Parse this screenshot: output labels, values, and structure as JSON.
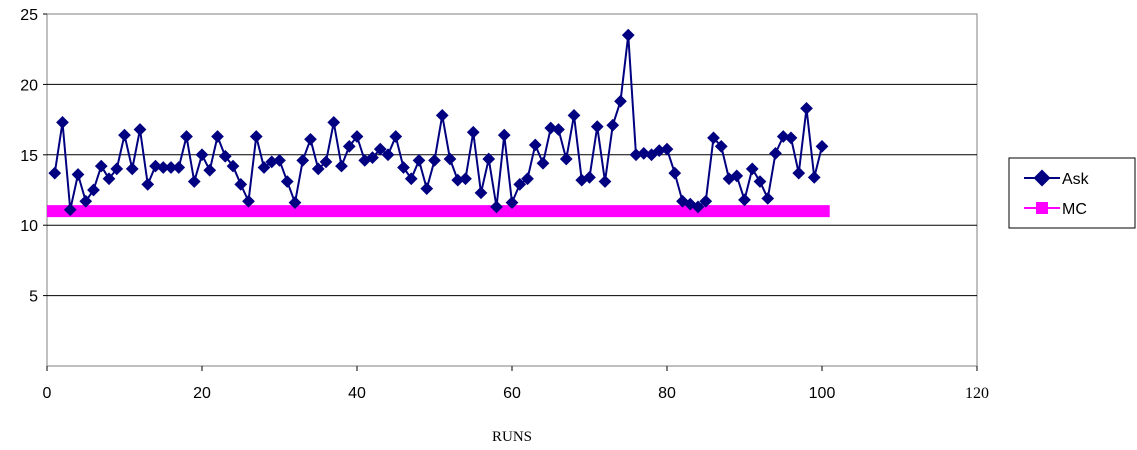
{
  "chart_data": {
    "type": "line",
    "xlabel": "RUNS",
    "ylabel": "",
    "xlim": [
      0,
      120
    ],
    "ylim": [
      0,
      25
    ],
    "x_ticks": [
      "0",
      "20",
      "40",
      "60",
      "80",
      "100",
      "120"
    ],
    "y_ticks": [
      "5",
      "10",
      "15",
      "20",
      "25"
    ],
    "grid": "horizontal",
    "legend_position": "right",
    "series": [
      {
        "name": "Ask",
        "color": "#000080",
        "marker": "diamond",
        "x": [
          1,
          2,
          3,
          4,
          5,
          6,
          7,
          8,
          9,
          10,
          11,
          12,
          13,
          14,
          15,
          16,
          17,
          18,
          19,
          20,
          21,
          22,
          23,
          24,
          25,
          26,
          27,
          28,
          29,
          30,
          31,
          32,
          33,
          34,
          35,
          36,
          37,
          38,
          39,
          40,
          41,
          42,
          43,
          44,
          45,
          46,
          47,
          48,
          49,
          50,
          51,
          52,
          53,
          54,
          55,
          56,
          57,
          58,
          59,
          60,
          61,
          62,
          63,
          64,
          65,
          66,
          67,
          68,
          69,
          70,
          71,
          72,
          73,
          74,
          75,
          76,
          77,
          78,
          79,
          80,
          81,
          82,
          83,
          84,
          85,
          86,
          87,
          88,
          89,
          90,
          91,
          92,
          93,
          94,
          95,
          96,
          97,
          98,
          99,
          100
        ],
        "values": [
          13.7,
          17.3,
          11.1,
          13.6,
          11.7,
          12.5,
          14.2,
          13.3,
          14.0,
          16.4,
          14.0,
          16.8,
          12.9,
          14.2,
          14.1,
          14.1,
          14.1,
          16.3,
          13.1,
          15.0,
          13.9,
          16.3,
          14.9,
          14.2,
          12.9,
          11.7,
          16.3,
          14.1,
          14.5,
          14.6,
          13.1,
          11.6,
          14.6,
          16.1,
          14.0,
          14.5,
          17.3,
          14.2,
          15.6,
          16.3,
          14.6,
          14.8,
          15.4,
          15.0,
          16.3,
          14.1,
          13.3,
          14.6,
          12.6,
          14.6,
          17.8,
          14.7,
          13.2,
          13.3,
          16.6,
          12.3,
          14.7,
          11.3,
          16.4,
          11.6,
          12.9,
          13.3,
          15.7,
          14.4,
          16.9,
          16.8,
          14.7,
          17.8,
          13.2,
          13.4,
          17.0,
          13.1,
          17.1,
          18.8,
          23.5,
          15.0,
          15.1,
          15.0,
          15.3,
          15.4,
          13.7,
          11.7,
          11.5,
          11.3,
          11.7,
          16.2,
          15.6,
          13.3,
          13.5,
          11.8,
          14.0,
          13.1,
          11.9,
          15.1,
          16.3,
          16.2,
          13.7,
          18.3,
          13.4,
          15.6
        ]
      },
      {
        "name": "MC",
        "color": "#ff00ff",
        "marker": "square",
        "x": [
          0,
          101
        ],
        "values": [
          11,
          11
        ]
      }
    ]
  }
}
